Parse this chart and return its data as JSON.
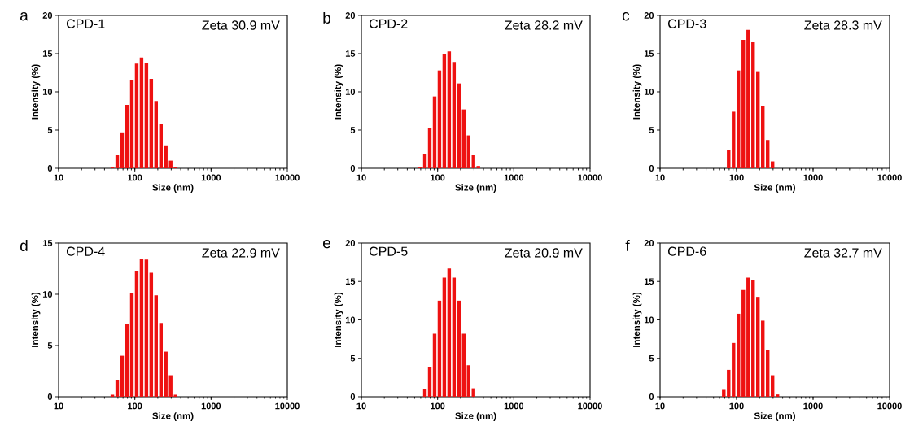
{
  "chart_data": [
    {
      "type": "bar",
      "title": "CPD-1",
      "annotations": [
        "a",
        "Zeta 30.9 mV"
      ],
      "xlabel": "Size (nm)",
      "ylabel": "Intensity (%)",
      "log": "x",
      "xlim": [
        10,
        10000
      ],
      "xticks": [
        10,
        100,
        1000,
        10000
      ],
      "ylim": [
        0,
        20
      ],
      "yticks": [
        0,
        5,
        10,
        15,
        20
      ],
      "color": "#ee1111",
      "x": [
        50.75,
        58.77,
        68.06,
        78.82,
        91.28,
        105.7,
        122.4,
        141.8,
        164.2,
        190.1,
        220.2,
        255.0,
        295.3,
        342.0
      ],
      "values": [
        0.1,
        1.7,
        4.7,
        8.3,
        11.5,
        13.7,
        14.5,
        13.8,
        11.7,
        8.8,
        5.8,
        3.0,
        1.0,
        0.1
      ]
    },
    {
      "type": "bar",
      "title": "CPD-2",
      "annotations": [
        "b",
        "Zeta 28.2 mV"
      ],
      "xlabel": "Size (nm)",
      "ylabel": "Intensity (%)",
      "log": "x",
      "xlim": [
        10,
        10000
      ],
      "xticks": [
        10,
        100,
        1000,
        10000
      ],
      "ylim": [
        0,
        20
      ],
      "yticks": [
        0,
        5,
        10,
        15,
        20
      ],
      "color": "#ee1111",
      "x": [
        58.77,
        68.06,
        78.82,
        91.28,
        105.7,
        122.4,
        141.8,
        164.2,
        190.1,
        220.2,
        255.0,
        295.3,
        342.0
      ],
      "values": [
        0.1,
        1.9,
        5.3,
        9.4,
        12.8,
        15.0,
        15.3,
        13.9,
        11.1,
        7.7,
        4.3,
        1.7,
        0.3
      ]
    },
    {
      "type": "bar",
      "title": "CPD-3",
      "annotations": [
        "c",
        "Zeta 28.3 mV"
      ],
      "xlabel": "Size (nm)",
      "ylabel": "Intensity (%)",
      "log": "x",
      "xlim": [
        10,
        10000
      ],
      "xticks": [
        10,
        100,
        1000,
        10000
      ],
      "ylim": [
        0,
        20
      ],
      "yticks": [
        0,
        5,
        10,
        15,
        20
      ],
      "color": "#ee1111",
      "x": [
        78.82,
        91.28,
        105.7,
        122.4,
        141.8,
        164.2,
        190.1,
        220.2,
        255.0,
        295.3
      ],
      "values": [
        2.4,
        7.4,
        12.8,
        16.8,
        18.1,
        16.5,
        12.7,
        8.1,
        3.7,
        0.9
      ]
    },
    {
      "type": "bar",
      "title": "CPD-4",
      "annotations": [
        "d",
        "Zeta 22.9 mV"
      ],
      "xlabel": "Size (nm)",
      "ylabel": "Intensity (%)",
      "log": "x",
      "xlim": [
        10,
        10000
      ],
      "xticks": [
        10,
        100,
        1000,
        10000
      ],
      "ylim": [
        0,
        15
      ],
      "yticks": [
        0,
        5,
        10,
        15
      ],
      "color": "#ee1111",
      "x": [
        50.75,
        58.77,
        68.06,
        78.82,
        91.28,
        105.7,
        122.4,
        141.8,
        164.2,
        190.1,
        220.2,
        255.0,
        295.3,
        342.0
      ],
      "values": [
        0.2,
        1.6,
        4.0,
        7.1,
        10.1,
        12.3,
        13.5,
        13.4,
        12.1,
        9.9,
        7.2,
        4.4,
        2.1,
        0.2
      ]
    },
    {
      "type": "bar",
      "title": "CPD-5",
      "annotations": [
        "e",
        "Zeta 20.9 mV"
      ],
      "xlabel": "Size (nm)",
      "ylabel": "Intensity (%)",
      "log": "x",
      "xlim": [
        10,
        10000
      ],
      "xticks": [
        10,
        100,
        1000,
        10000
      ],
      "ylim": [
        0,
        20
      ],
      "yticks": [
        0,
        5,
        10,
        15,
        20
      ],
      "color": "#ee1111",
      "x": [
        68.06,
        78.82,
        91.28,
        105.7,
        122.4,
        141.8,
        164.2,
        190.1,
        220.2,
        255.0,
        295.3
      ],
      "values": [
        1.0,
        3.9,
        8.2,
        12.5,
        15.5,
        16.7,
        15.5,
        12.5,
        8.2,
        4.1,
        1.1
      ]
    },
    {
      "type": "bar",
      "title": "CPD-6",
      "annotations": [
        "f",
        "Zeta 32.7 mV"
      ],
      "xlabel": "Size (nm)",
      "ylabel": "Intensity (%)",
      "log": "x",
      "xlim": [
        10,
        10000
      ],
      "xticks": [
        10,
        100,
        1000,
        10000
      ],
      "ylim": [
        0,
        20
      ],
      "yticks": [
        0,
        5,
        10,
        15,
        20
      ],
      "color": "#ee1111",
      "x": [
        68.06,
        78.82,
        91.28,
        105.7,
        122.4,
        141.8,
        164.2,
        190.1,
        220.2,
        255.0,
        295.3,
        342.0
      ],
      "values": [
        0.9,
        3.5,
        7.0,
        10.8,
        13.9,
        15.5,
        15.2,
        13.0,
        9.9,
        6.1,
        2.8,
        0.3
      ]
    }
  ]
}
